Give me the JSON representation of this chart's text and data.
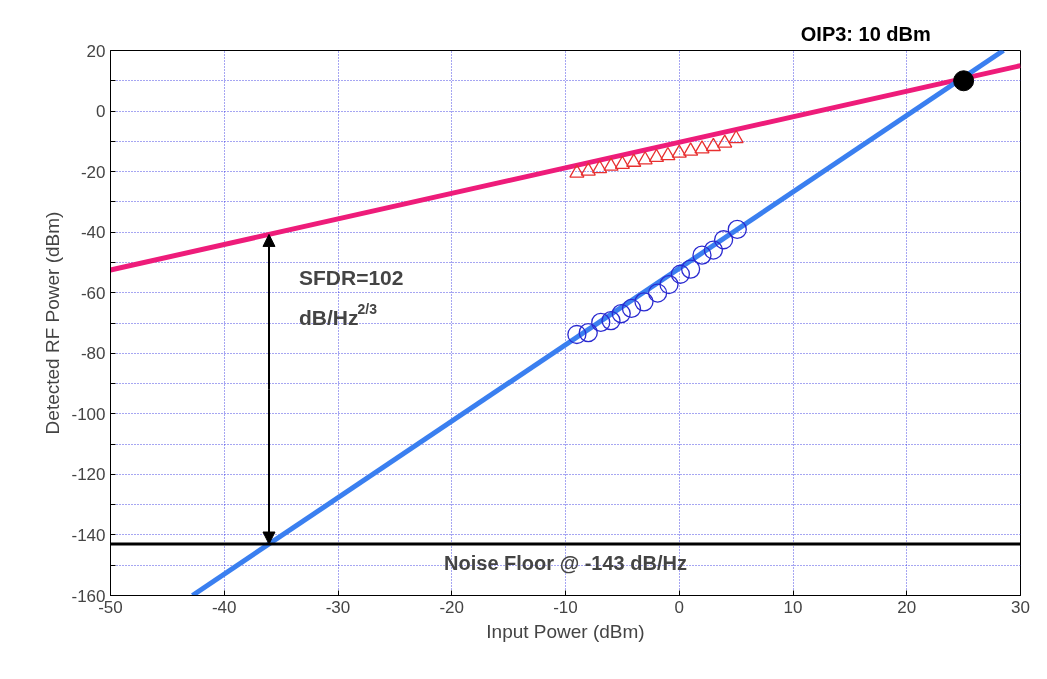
{
  "chart_data": {
    "type": "line",
    "xlabel": "Input Power (dBm)",
    "ylabel": "Detected RF Power (dBm)",
    "xlim": [
      -50,
      30
    ],
    "xticks": [
      -50,
      -40,
      -30,
      -20,
      -10,
      0,
      10,
      20,
      30
    ],
    "ylim": [
      -160,
      20
    ],
    "yticks": [
      -160,
      {
        "value": -150,
        "label": null
      },
      -140,
      {
        "value": -130,
        "label": null
      },
      -120,
      {
        "value": -110,
        "label": null
      },
      -100,
      {
        "value": -90,
        "label": null
      },
      -80,
      {
        "value": -70,
        "label": null
      },
      -60,
      {
        "value": -50,
        "label": null
      },
      -40,
      {
        "value": -30,
        "label": null
      },
      -20,
      {
        "value": -10,
        "label": null
      },
      0,
      {
        "value": 10,
        "label": null
      },
      20
    ],
    "grid": true,
    "series": [
      {
        "color": "#ee1c7a",
        "x": [
          -50,
          30
        ],
        "values": [
          -52.5,
          15
        ]
      },
      {
        "color": "#3a7ff0",
        "x": [
          -42.8,
          28.5
        ],
        "values": [
          -160,
          20
        ]
      },
      {
        "type": "scatter",
        "marker": "triangle",
        "color": "#e83030",
        "x": [
          -9,
          -8,
          -7,
          -6,
          -5,
          -4,
          -3,
          -2,
          -1,
          0,
          1,
          2,
          3,
          4,
          5
        ],
        "values": [
          -20.5,
          -19.8,
          -19.0,
          -18.2,
          -17.6,
          -16.9,
          -16.1,
          -15.3,
          -14.7,
          -13.9,
          -13.2,
          -12.5,
          -11.7,
          -10.6,
          -9.1
        ]
      },
      {
        "type": "scatter",
        "marker": "circle",
        "color": "#2a2ad0",
        "x": [
          -9,
          -8,
          -6.9,
          -6,
          -5.1,
          -4.2,
          -3.1,
          -1.9,
          -0.9,
          0.1,
          1,
          2,
          3,
          3.9,
          5.1
        ],
        "values": [
          -73.8,
          -73.2,
          -69.8,
          -69.2,
          -66.9,
          -65.2,
          -63.0,
          -60.1,
          -57.3,
          -53.9,
          -52.2,
          -47.6,
          -45.9,
          -42.5,
          -39.1
        ]
      }
    ],
    "ref_lines": [
      {
        "axis": "y",
        "value": -143,
        "label": "Noise Floor @ -143 dB/Hz",
        "color": "#000000"
      }
    ],
    "annotations": [
      {
        "text": "OIP3: 10 dBm",
        "x": 25,
        "y": 10
      },
      "SFDR=102\ndB/Hz$^{2/3}$"
    ]
  }
}
